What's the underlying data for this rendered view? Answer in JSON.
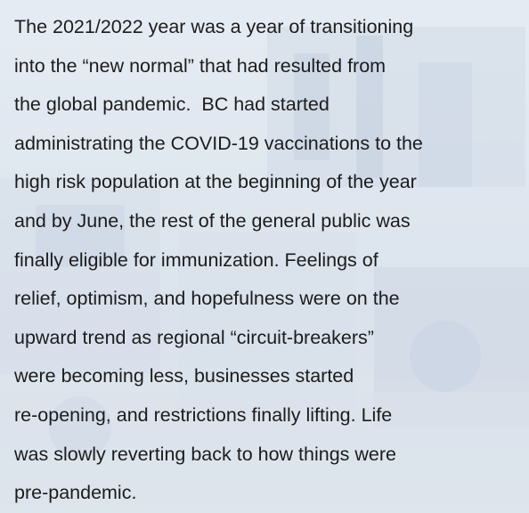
{
  "paragraph": {
    "lines": [
      "The 2021/2022 year was a year of transitioning",
      "into the “new normal” that had resulted from",
      "the global pandemic.  BC had started",
      "administrating the COVID-19 vaccinations to the",
      "high risk population at the beginning of the year",
      "and by June, the rest of the general public was",
      "finally eligible for immunization. Feelings of",
      "relief, optimism, and hopefulness were on the",
      "upward trend as regional “circuit-breakers”",
      "were becoming less, businesses started",
      "re-opening, and restrictions finally lifting. Life",
      "was slowly reverting back to how things were",
      "pre-pandemic."
    ]
  }
}
